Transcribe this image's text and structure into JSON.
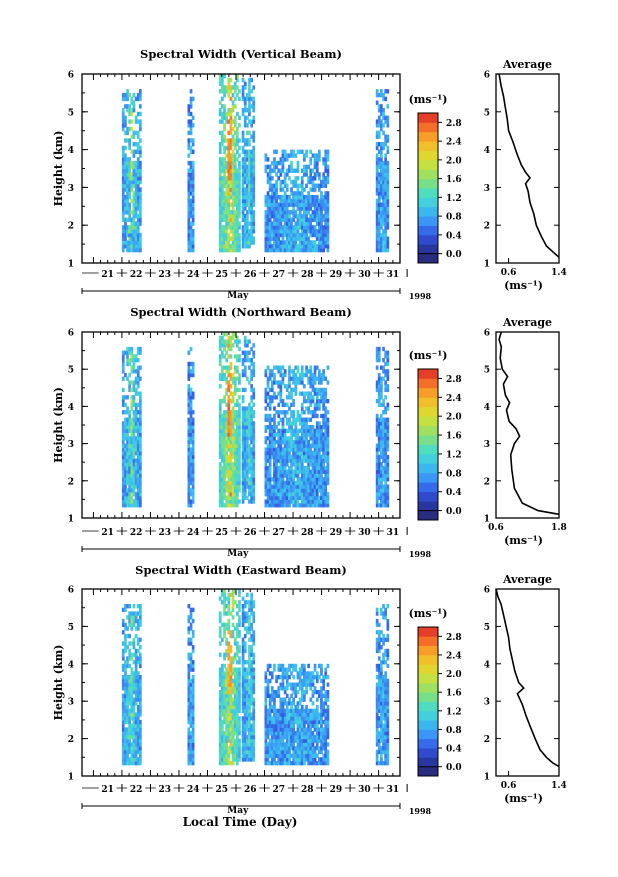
{
  "figure": {
    "xlabel_bottom": "Local Time (Day)",
    "year_label": "1998",
    "month_label": "May"
  },
  "chart_data": [
    {
      "type": "heatmap",
      "title": "Spectral Width (Vertical Beam)",
      "ylabel": "Height (km)",
      "xlabel": "Local Time (Day)",
      "x_day_labels": [
        "21",
        "22",
        "23",
        "24",
        "25",
        "26",
        "27",
        "28",
        "29",
        "30",
        "31"
      ],
      "xlim": [
        20.6,
        31.75
      ],
      "ylim": [
        1,
        6
      ],
      "y_ticks": [
        "1",
        "2",
        "3",
        "4",
        "5",
        "6"
      ],
      "colorbar": {
        "unit_label": "(ms⁻¹)",
        "ticks": [
          "0.0",
          "0.4",
          "0.8",
          "1.2",
          "1.6",
          "2.0",
          "2.4",
          "2.8"
        ],
        "range": [
          -0.2,
          3.0
        ]
      },
      "data_blocks": [
        {
          "x": [
            22.0,
            22.6
          ],
          "y": [
            1.3,
            5.5
          ],
          "level": 0.8,
          "core": 2.0
        },
        {
          "x": [
            24.3,
            24.5
          ],
          "y": [
            1.3,
            5.5
          ],
          "level": 0.7,
          "core": 0.9
        },
        {
          "x": [
            25.4,
            26.1
          ],
          "y": [
            1.3,
            6.0
          ],
          "level": 1.2,
          "core": 2.8
        },
        {
          "x": [
            26.2,
            26.6
          ],
          "y": [
            1.4,
            5.8
          ],
          "level": 0.8,
          "core": 1.4
        },
        {
          "x": [
            27.0,
            29.2
          ],
          "y": [
            1.3,
            4.0
          ],
          "level": 0.7,
          "core": 1.1
        },
        {
          "x": [
            30.9,
            31.3
          ],
          "y": [
            1.3,
            5.5
          ],
          "level": 0.7,
          "core": 1.0
        }
      ],
      "profile": {
        "title": "Average",
        "xlabel": "(ms⁻¹)",
        "x_ticks": [
          "0.6",
          "1.4"
        ],
        "xlim": [
          0.4,
          1.4
        ],
        "ylim": [
          1,
          6
        ],
        "points": [
          [
            1.4,
            1.15
          ],
          [
            1.3,
            1.3
          ],
          [
            1.2,
            1.45
          ],
          [
            1.12,
            1.7
          ],
          [
            1.04,
            2.0
          ],
          [
            1.0,
            2.3
          ],
          [
            0.94,
            2.6
          ],
          [
            0.91,
            2.9
          ],
          [
            0.87,
            3.1
          ],
          [
            0.94,
            3.25
          ],
          [
            0.87,
            3.4
          ],
          [
            0.8,
            3.6
          ],
          [
            0.73,
            3.9
          ],
          [
            0.67,
            4.2
          ],
          [
            0.6,
            4.5
          ],
          [
            0.58,
            4.8
          ],
          [
            0.55,
            5.1
          ],
          [
            0.52,
            5.4
          ],
          [
            0.48,
            5.7
          ],
          [
            0.45,
            6.0
          ]
        ]
      }
    },
    {
      "type": "heatmap",
      "title": "Spectral Width (Northward Beam)",
      "ylabel": "Height (km)",
      "xlabel": "Local Time (Day)",
      "x_day_labels": [
        "21",
        "22",
        "23",
        "24",
        "25",
        "26",
        "27",
        "28",
        "29",
        "30",
        "31"
      ],
      "xlim": [
        20.6,
        31.75
      ],
      "ylim": [
        1,
        6
      ],
      "y_ticks": [
        "1",
        "2",
        "3",
        "4",
        "5",
        "6"
      ],
      "colorbar": {
        "unit_label": "(ms⁻¹)",
        "ticks": [
          "0.0",
          "0.4",
          "0.8",
          "1.2",
          "1.6",
          "2.0",
          "2.4",
          "2.8"
        ],
        "range": [
          -0.2,
          3.0
        ]
      },
      "data_blocks": [
        {
          "x": [
            22.0,
            22.6
          ],
          "y": [
            1.3,
            5.5
          ],
          "level": 0.8,
          "core": 1.8
        },
        {
          "x": [
            24.3,
            24.5
          ],
          "y": [
            1.3,
            5.5
          ],
          "level": 0.7,
          "core": 0.9
        },
        {
          "x": [
            25.4,
            26.1
          ],
          "y": [
            1.3,
            6.0
          ],
          "level": 1.2,
          "core": 2.8
        },
        {
          "x": [
            26.2,
            26.6
          ],
          "y": [
            1.4,
            5.8
          ],
          "level": 0.8,
          "core": 1.4
        },
        {
          "x": [
            27.0,
            29.2
          ],
          "y": [
            1.3,
            5.0
          ],
          "level": 0.7,
          "core": 1.1
        },
        {
          "x": [
            30.9,
            31.3
          ],
          "y": [
            1.3,
            5.5
          ],
          "level": 0.7,
          "core": 1.0
        }
      ],
      "profile": {
        "title": "Average",
        "xlabel": "(ms⁻¹)",
        "x_ticks": [
          "0.6",
          "1.8"
        ],
        "xlim": [
          0.6,
          1.8
        ],
        "ylim": [
          1,
          6
        ],
        "points": [
          [
            1.8,
            1.1
          ],
          [
            1.4,
            1.2
          ],
          [
            1.1,
            1.4
          ],
          [
            0.95,
            1.8
          ],
          [
            0.9,
            2.3
          ],
          [
            0.88,
            2.7
          ],
          [
            0.95,
            3.0
          ],
          [
            1.05,
            3.2
          ],
          [
            0.98,
            3.4
          ],
          [
            0.85,
            3.6
          ],
          [
            0.8,
            3.9
          ],
          [
            0.86,
            4.1
          ],
          [
            0.78,
            4.3
          ],
          [
            0.74,
            4.6
          ],
          [
            0.82,
            4.8
          ],
          [
            0.72,
            5.0
          ],
          [
            0.68,
            5.3
          ],
          [
            0.7,
            5.6
          ],
          [
            0.66,
            5.8
          ],
          [
            0.7,
            6.0
          ]
        ]
      }
    },
    {
      "type": "heatmap",
      "title": "Spectral Width (Eastward Beam)",
      "ylabel": "Height (km)",
      "xlabel": "Local Time (Day)",
      "x_day_labels": [
        "21",
        "22",
        "23",
        "24",
        "25",
        "26",
        "27",
        "28",
        "29",
        "30",
        "31"
      ],
      "xlim": [
        20.6,
        31.75
      ],
      "ylim": [
        1,
        6
      ],
      "y_ticks": [
        "1",
        "2",
        "3",
        "4",
        "5",
        "6"
      ],
      "colorbar": {
        "unit_label": "(ms⁻¹)",
        "ticks": [
          "0.0",
          "0.4",
          "0.8",
          "1.2",
          "1.6",
          "2.0",
          "2.4",
          "2.8"
        ],
        "range": [
          -0.2,
          3.0
        ]
      },
      "data_blocks": [
        {
          "x": [
            22.0,
            22.6
          ],
          "y": [
            1.3,
            5.5
          ],
          "level": 0.8,
          "core": 1.6
        },
        {
          "x": [
            24.3,
            24.5
          ],
          "y": [
            1.3,
            5.5
          ],
          "level": 0.7,
          "core": 0.9
        },
        {
          "x": [
            25.4,
            26.1
          ],
          "y": [
            1.3,
            6.0
          ],
          "level": 1.1,
          "core": 2.6
        },
        {
          "x": [
            26.2,
            26.6
          ],
          "y": [
            1.4,
            5.8
          ],
          "level": 0.8,
          "core": 1.4
        },
        {
          "x": [
            27.0,
            29.2
          ],
          "y": [
            1.3,
            4.0
          ],
          "level": 0.7,
          "core": 1.0
        },
        {
          "x": [
            30.9,
            31.3
          ],
          "y": [
            1.3,
            5.5
          ],
          "level": 0.7,
          "core": 1.0
        }
      ],
      "profile": {
        "title": "Average",
        "xlabel": "(ms⁻¹)",
        "x_ticks": [
          "0.6",
          "1.4"
        ],
        "xlim": [
          0.4,
          1.4
        ],
        "ylim": [
          1,
          6
        ],
        "points": [
          [
            1.4,
            1.25
          ],
          [
            1.3,
            1.35
          ],
          [
            1.2,
            1.5
          ],
          [
            1.1,
            1.7
          ],
          [
            1.02,
            2.0
          ],
          [
            0.95,
            2.3
          ],
          [
            0.88,
            2.6
          ],
          [
            0.82,
            2.9
          ],
          [
            0.74,
            3.2
          ],
          [
            0.84,
            3.35
          ],
          [
            0.76,
            3.5
          ],
          [
            0.7,
            3.8
          ],
          [
            0.66,
            4.1
          ],
          [
            0.62,
            4.4
          ],
          [
            0.6,
            4.7
          ],
          [
            0.56,
            5.0
          ],
          [
            0.52,
            5.3
          ],
          [
            0.48,
            5.6
          ],
          [
            0.43,
            5.8
          ],
          [
            0.4,
            6.0
          ]
        ]
      }
    }
  ]
}
